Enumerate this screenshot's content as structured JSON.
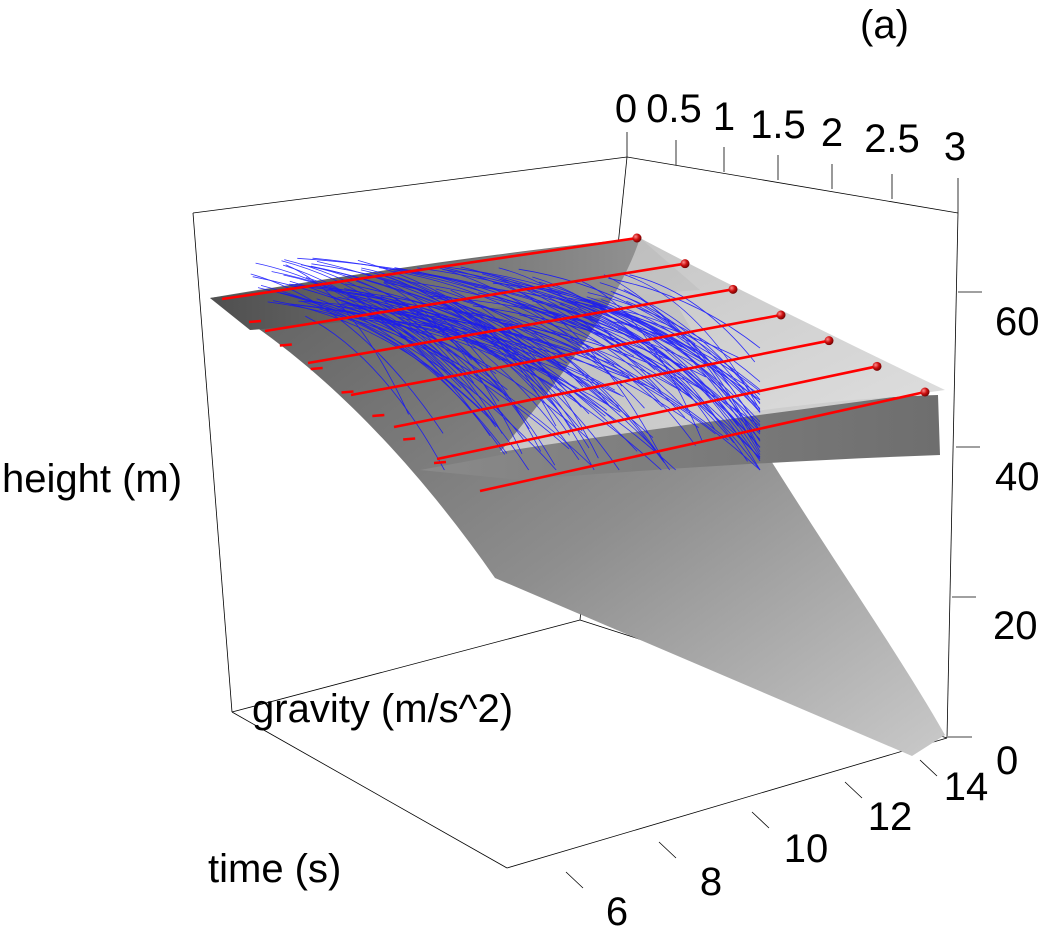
{
  "chart_data": {
    "type": "surface3d",
    "panel_label": "(a)",
    "axes": {
      "x": {
        "label": "time (s)",
        "ticks": [
          "6",
          "8",
          "10",
          "12",
          "14"
        ]
      },
      "y": {
        "label": "gravity (m/s^2)",
        "ticks": [
          "0",
          "0.5",
          "1",
          "1.5",
          "2",
          "2.5",
          "3"
        ]
      },
      "z": {
        "label": "height (m)",
        "ticks": [
          "0",
          "20",
          "40",
          "60"
        ]
      }
    },
    "series": [
      {
        "kind": "surface",
        "color": "#808080"
      },
      {
        "kind": "surface",
        "color": "#c8c8c8"
      },
      {
        "kind": "lines",
        "color": "#ff0000"
      },
      {
        "kind": "points",
        "color": "#cc0000"
      },
      {
        "kind": "lines",
        "color": "#0000ff"
      }
    ],
    "observations": [
      {
        "time": 6,
        "height": 65
      },
      {
        "time": 7,
        "height": 63
      },
      {
        "time": 8,
        "height": 61
      },
      {
        "time": 9,
        "height": 58
      },
      {
        "time": 10,
        "height": 55
      },
      {
        "time": 11,
        "height": 52
      },
      {
        "time": 12,
        "height": 50
      }
    ]
  }
}
